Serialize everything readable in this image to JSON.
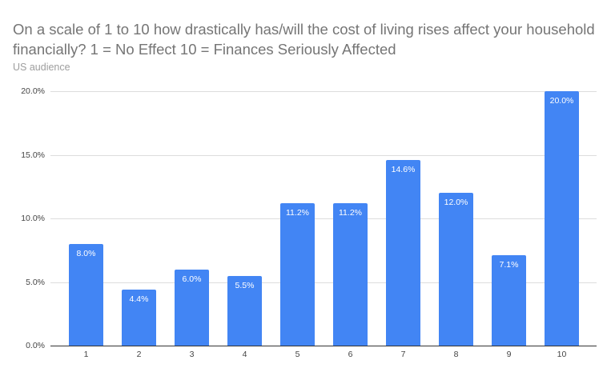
{
  "chart_data": {
    "type": "bar",
    "title": "On a scale of 1 to 10 how drastically has/will the cost of living rises affect your household financially?  1 = No Effect 10 = Finances Seriously Affected",
    "subtitle": "US audience",
    "xlabel": "",
    "ylabel": "",
    "categories": [
      "1",
      "2",
      "3",
      "4",
      "5",
      "6",
      "7",
      "8",
      "9",
      "10"
    ],
    "values": [
      8.0,
      4.4,
      6.0,
      5.5,
      11.2,
      11.2,
      14.6,
      12.0,
      7.1,
      20.0
    ],
    "data_labels": [
      "8.0%",
      "4.4%",
      "6.0%",
      "5.5%",
      "11.2%",
      "11.2%",
      "14.6%",
      "12.0%",
      "7.1%",
      "20.0%"
    ],
    "ylim": [
      0,
      20
    ],
    "yticks": [
      "0.0%",
      "5.0%",
      "10.0%",
      "15.0%",
      "20.0%"
    ],
    "grid": true,
    "legend": "none",
    "bar_color": "#4285f4"
  }
}
